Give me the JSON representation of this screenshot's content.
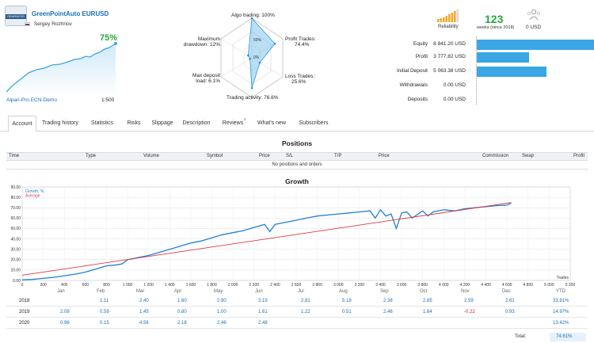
{
  "header": {
    "logo_text": "GENERATOR",
    "title": "GreenPointAuto EURUSD",
    "author": "Sergey Rozhnov",
    "growth_pct": "75%",
    "broker": "Alpari-Pro.ECN-Demo",
    "leverage": "1:500"
  },
  "radar": {
    "algo_trading": "Algo trading: 100%",
    "profit_trades": "Profit Trades:",
    "profit_trades_val": "74.4%",
    "loss_trades": "Loss Trades:",
    "loss_trades_val": "25.6%",
    "trading_activity": "Trading activity: 76.6%",
    "max_deposit_load": "Max deposit",
    "max_deposit_load2": "load: 6.1%",
    "max_drawdown": "Maximum",
    "max_drawdown2": "drawdown: 12%",
    "ring_50": "50%",
    "ring_0": "0%",
    "values": {
      "algo": 100,
      "profit": 74.4,
      "loss": 25.6,
      "activity": 76.6,
      "load": 6.1,
      "drawdown": 12
    }
  },
  "stats": {
    "reliability_label": "Reliability",
    "weeks_value": "123",
    "weeks_label": "weeks (since 2018)",
    "subscribers_value": "0 USD"
  },
  "balances": {
    "max": 8841.2,
    "rows": [
      {
        "label": "Equity",
        "value": "8 841.20 USD",
        "amount": 8841.2
      },
      {
        "label": "Profit",
        "value": "3 777.82 USD",
        "amount": 3777.82
      },
      {
        "label": "Initial Deposit",
        "value": "5 063.38 USD",
        "amount": 5063.38
      },
      {
        "label": "Withdrawals",
        "value": "0.00 USD",
        "amount": 0
      },
      {
        "label": "Deposits",
        "value": "0.00 USD",
        "amount": 0
      }
    ]
  },
  "tabs": [
    {
      "label": "Account"
    },
    {
      "label": "Trading history"
    },
    {
      "label": "Statistics"
    },
    {
      "label": "Risks"
    },
    {
      "label": "Slippage"
    },
    {
      "label": "Description"
    },
    {
      "label": "Reviews"
    },
    {
      "label": "What's new"
    },
    {
      "label": "Subscribers"
    }
  ],
  "reviews_count": "3",
  "positions": {
    "title": "Positions",
    "columns": [
      "Time",
      "Type",
      "Volume",
      "Symbol",
      "Price",
      "S/L",
      "T/P",
      "Price",
      "Commission",
      "Swap",
      "Profit"
    ],
    "empty_text": "No positions and orders"
  },
  "growth": {
    "title": "Growth",
    "legend_growth": "Growth, %",
    "legend_average": "Average",
    "x_axis_label": "Trades"
  },
  "chart_data": {
    "type": "line",
    "title": "Growth",
    "xlabel": "Trades",
    "ylabel": "",
    "xlim": [
      0,
      5200
    ],
    "ylim": [
      0,
      90
    ],
    "x_ticks": [
      "0",
      "200",
      "400",
      "600",
      "800",
      "1 000",
      "1 200",
      "1 400",
      "1 600",
      "1 800",
      "2 000",
      "2 200",
      "2 400",
      "2 600",
      "2 800",
      "3 000",
      "3 200",
      "3 400",
      "3 600",
      "3 800",
      "4 000",
      "4 200",
      "4 400",
      "4 600",
      "4 800",
      "5 000",
      "5 200"
    ],
    "y_ticks": [
      "0.00",
      "10.00",
      "20.00",
      "30.00",
      "40.00",
      "50.00",
      "60.00",
      "70.00",
      "80.00",
      "90.00"
    ],
    "series": [
      {
        "name": "Growth, %",
        "color": "#1f7fdc",
        "x": [
          0,
          100,
          200,
          300,
          400,
          500,
          600,
          700,
          800,
          900,
          950,
          1000,
          1100,
          1200,
          1300,
          1400,
          1500,
          1600,
          1700,
          1800,
          1900,
          2000,
          2100,
          2200,
          2300,
          2350,
          2400,
          2500,
          2600,
          2700,
          2800,
          2900,
          3000,
          3100,
          3200,
          3300,
          3350,
          3400,
          3450,
          3500,
          3550,
          3600,
          3650,
          3700,
          3800,
          3850,
          3900,
          4000,
          4100,
          4200,
          4300,
          4400,
          4500,
          4600,
          4640
        ],
        "y": [
          0.5,
          1,
          2,
          3,
          4.5,
          6,
          8,
          11,
          14,
          15,
          16,
          20,
          22,
          24,
          27,
          30,
          33,
          36,
          38,
          41,
          44,
          46,
          48,
          51,
          54,
          47,
          54,
          56,
          58,
          60,
          62,
          63,
          64,
          65,
          66,
          67,
          60,
          68,
          62,
          64,
          50,
          65,
          66,
          60,
          67,
          62,
          66,
          68,
          67,
          69,
          70,
          71,
          72,
          72.5,
          74.6
        ]
      },
      {
        "name": "Average",
        "color": "#e0393e",
        "x": [
          0,
          4640
        ],
        "y": [
          5,
          75
        ]
      }
    ]
  },
  "yearly": {
    "months": [
      "Jan",
      "Feb",
      "Mar",
      "Apr",
      "May",
      "Jun",
      "Jul",
      "Aug",
      "Sep",
      "Oct",
      "Nov",
      "Dec",
      "YTD"
    ],
    "rows": [
      {
        "year": "2018",
        "values": [
          "",
          "1.11",
          "2.40",
          "1.60",
          "2.90",
          "3.19",
          "2.81",
          "5.18",
          "2.38",
          "2.85",
          "2.59",
          "2.61"
        ],
        "ytd": "33.91%"
      },
      {
        "year": "2019",
        "values": [
          "2.08",
          "0.59",
          "1.45",
          "0.80",
          "1.00",
          "1.61",
          "1.22",
          "0.51",
          "2.46",
          "1.64",
          "-0.22",
          "0.93"
        ],
        "ytd": "14.97%"
      },
      {
        "year": "2020",
        "values": [
          "0.96",
          "0.15",
          "4.56",
          "2.18",
          "2.46",
          "2.48",
          "",
          "",
          "",
          "",
          "",
          ""
        ],
        "ytd": "13.42%"
      }
    ],
    "total_label": "Total:",
    "total_value": "74.61%"
  },
  "colors": {
    "accent": "#1a6fb6",
    "bar": "#3ba6e4",
    "growth_green": "#2aa63c",
    "negative": "#d0243b"
  }
}
